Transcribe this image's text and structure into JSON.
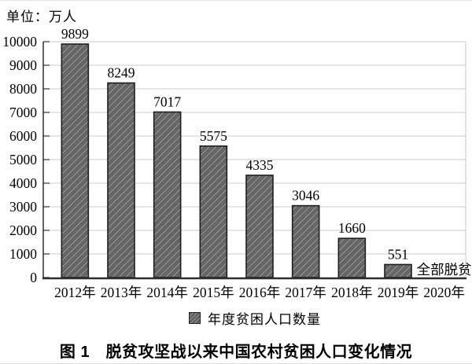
{
  "unit_label": "单位：万人",
  "legend": {
    "swatch_icon": "hatched-square-icon",
    "label": "年度贫困人口数量"
  },
  "caption": "图 1　脱贫攻坚战以来中国农村贫困人口变化情况",
  "colors": {
    "bar_fill": "#5c5c5c",
    "bar_hatch_line": "#959595",
    "bar_border": "#1f1f1f",
    "gridline": "#cbcbcb",
    "axis": "#2e2e2e",
    "text": "#000000"
  },
  "chart_data": {
    "type": "bar",
    "categories": [
      "2012年",
      "2013年",
      "2014年",
      "2015年",
      "2016年",
      "2017年",
      "2018年",
      "2019年",
      "2020年"
    ],
    "values": [
      9899,
      8249,
      7017,
      5575,
      4335,
      3046,
      1660,
      551,
      null
    ],
    "bar_labels": [
      "9899",
      "8249",
      "7017",
      "5575",
      "4335",
      "3046",
      "1660",
      "551",
      ""
    ],
    "annotations": [
      {
        "category_index": 8,
        "text": "全部脱贫"
      }
    ],
    "title": "",
    "xlabel": "",
    "ylabel": "单位：万人",
    "ylim": [
      0,
      10000
    ],
    "ytick_step": 1000,
    "ytick_labels": [
      "0",
      "1000",
      "2000",
      "3000",
      "4000",
      "5000",
      "6000",
      "7000",
      "8000",
      "9000",
      "10000"
    ],
    "grid": true,
    "hatch": "diagonal-forward",
    "legend_entries": [
      "年度贫困人口数量"
    ],
    "legend_position": "bottom-center"
  }
}
